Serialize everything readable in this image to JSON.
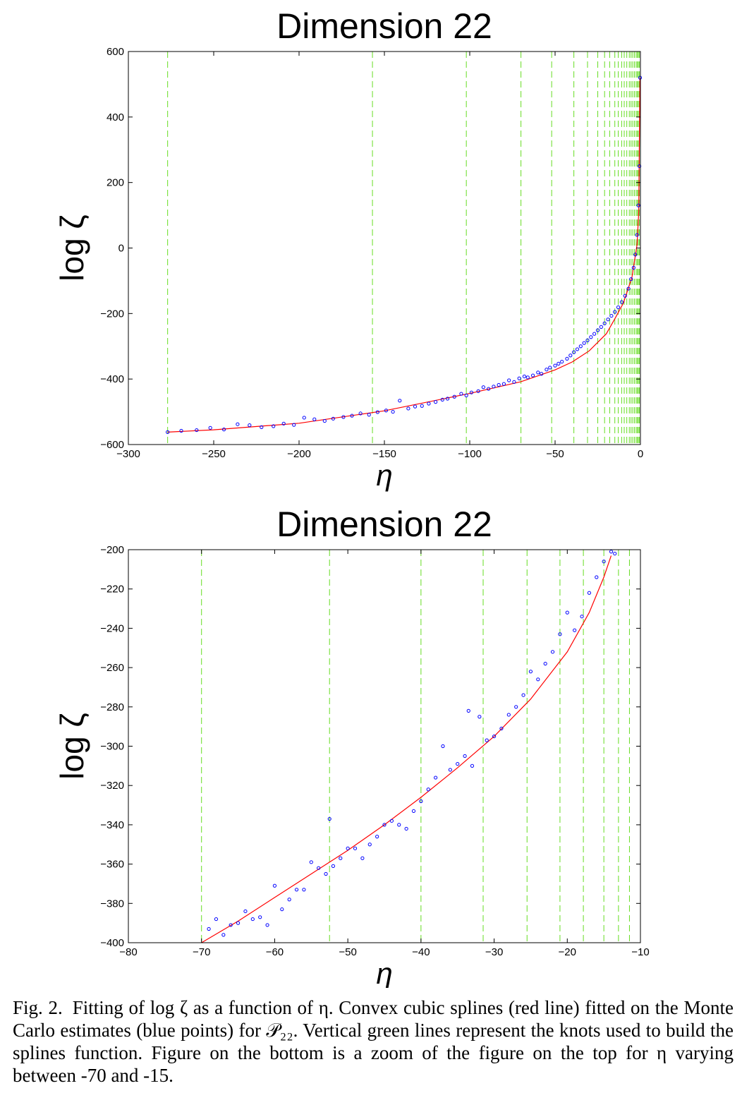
{
  "caption": {
    "label": "Fig. 2.",
    "text": "Fitting of log ζ as a function of η. Convex cubic splines (red line) fitted on the Monte Carlo estimates (blue points) for 𝒫₂₂. Vertical green lines represent the knots used to build the splines function. Figure on the bottom is a zoom of the figure on the top for η varying between -70 and -15."
  },
  "colors": {
    "points": "#0000ff",
    "fit": "#ff0000",
    "knots": "#66dd22",
    "axes": "#000000"
  },
  "chart_data": [
    {
      "type": "scatter",
      "title": "Dimension 22",
      "xlabel": "η",
      "ylabel": "log ζ",
      "xlim": [
        -300,
        0
      ],
      "ylim": [
        -600,
        600
      ],
      "xticks": [
        "−300",
        "−250",
        "−200",
        "−150",
        "−100",
        "−50",
        "0"
      ],
      "yticks": [
        "−600",
        "−400",
        "−200",
        "0",
        "200",
        "400",
        "600"
      ],
      "grid": false,
      "series": [
        {
          "kind": "points",
          "marker": "circle",
          "x": [
            -277,
            -269,
            -260,
            -252,
            -244,
            -236,
            -229,
            -222,
            -215,
            -209,
            -203,
            -197,
            -191,
            -185,
            -180,
            -174,
            -169,
            -164,
            -159,
            -154,
            -149,
            -145,
            -141,
            -136,
            -132,
            -128,
            -124,
            -120,
            -116,
            -113,
            -109,
            -105,
            -102,
            -99,
            -95,
            -92,
            -89,
            -86,
            -83,
            -80,
            -77,
            -74,
            -71,
            -68,
            -66,
            -63,
            -60,
            -58,
            -55,
            -53,
            -50,
            -48,
            -46,
            -43,
            -41,
            -39,
            -37,
            -35,
            -33,
            -31,
            -29,
            -27,
            -25,
            -23,
            -21,
            -19,
            -17,
            -15,
            -13,
            -11,
            -9,
            -7,
            -5.5,
            -4,
            -3,
            -2,
            -1.2,
            -0.6,
            -0.2
          ],
          "y": [
            -562,
            -558,
            -556,
            -549,
            -554,
            -538,
            -541,
            -547,
            -544,
            -536,
            -540,
            -518,
            -523,
            -528,
            -521,
            -516,
            -512,
            -505,
            -509,
            -501,
            -496,
            -500,
            -466,
            -490,
            -484,
            -482,
            -475,
            -470,
            -463,
            -460,
            -454,
            -445,
            -450,
            -441,
            -437,
            -425,
            -430,
            -423,
            -418,
            -415,
            -404,
            -409,
            -398,
            -392,
            -395,
            -389,
            -380,
            -384,
            -371,
            -365,
            -359,
            -353,
            -347,
            -338,
            -328,
            -318,
            -309,
            -300,
            -290,
            -282,
            -272,
            -262,
            -251,
            -241,
            -230,
            -218,
            -207,
            -195,
            -181,
            -165,
            -146,
            -124,
            -95,
            -60,
            -20,
            40,
            130,
            250,
            520
          ]
        }
      ],
      "fit": {
        "x": [
          -277,
          -250,
          -200,
          -150,
          -100,
          -70,
          -50,
          -40,
          -30,
          -20,
          -15,
          -10,
          -5,
          -2,
          -1,
          -0.3
        ],
        "y": [
          -562,
          -555,
          -535,
          -497,
          -444,
          -408,
          -372,
          -348,
          -314,
          -262,
          -216,
          -168,
          -90,
          10,
          110,
          520
        ]
      },
      "knots": [
        -277,
        -157,
        -102,
        -70,
        -52,
        -39,
        -31,
        -25,
        -21,
        -18,
        -15,
        -13,
        -11,
        -9.5,
        -8,
        -6.5,
        -5.5,
        -4.5,
        -3.5,
        -2.5,
        -1.8,
        -1.2,
        -0.6
      ]
    },
    {
      "type": "scatter",
      "title": "Dimension 22",
      "xlabel": "η",
      "ylabel": "log ζ",
      "xlim": [
        -80,
        -10
      ],
      "ylim": [
        -400,
        -200
      ],
      "xticks": [
        "−80",
        "−70",
        "−60",
        "−50",
        "−40",
        "−30",
        "−20",
        "−10"
      ],
      "yticks": [
        "−400",
        "−380",
        "−360",
        "−340",
        "−320",
        "−300",
        "−280",
        "−260",
        "−240",
        "−220",
        "−200"
      ],
      "grid": false,
      "series": [
        {
          "kind": "points",
          "marker": "circle",
          "x": [
            -69,
            -68,
            -67,
            -66,
            -65,
            -64,
            -63,
            -62,
            -61,
            -60,
            -59,
            -58,
            -57,
            -56,
            -55,
            -54,
            -53,
            -52.5,
            -52,
            -51,
            -50,
            -49,
            -48,
            -47,
            -46,
            -45,
            -44,
            -43,
            -42,
            -41,
            -40,
            -39,
            -38,
            -37,
            -36,
            -35,
            -34,
            -33.5,
            -33,
            -32,
            -31,
            -30,
            -29,
            -28,
            -27,
            -26,
            -25,
            -24,
            -23,
            -22,
            -21,
            -20,
            -19,
            -18,
            -17,
            -16,
            -15,
            -14,
            -13.5
          ],
          "y": [
            -393,
            -388,
            -396,
            -391,
            -390,
            -384,
            -388,
            -387,
            -391,
            -371,
            -383,
            -378,
            -373,
            -373,
            -359,
            -362,
            -365,
            -337,
            -361,
            -357,
            -352,
            -352,
            -357,
            -350,
            -346,
            -340,
            -338,
            -340,
            -342,
            -333,
            -328,
            -322,
            -316,
            -300,
            -312,
            -309,
            -305,
            -282,
            -310,
            -285,
            -297,
            -295,
            -291,
            -284,
            -280,
            -274,
            -262,
            -266,
            -258,
            -252,
            -243,
            -232,
            -241,
            -234,
            -222,
            -214,
            -206,
            -201,
            -202
          ]
        }
      ],
      "fit": {
        "x": [
          -70,
          -65,
          -60,
          -55,
          -50,
          -45,
          -40,
          -35,
          -30,
          -25,
          -20,
          -17,
          -15,
          -14
        ],
        "y": [
          -400,
          -389,
          -377,
          -365,
          -353,
          -340,
          -326,
          -311,
          -295,
          -276,
          -252,
          -232,
          -214,
          -203
        ]
      },
      "knots": [
        -70,
        -52.5,
        -40,
        -31.5,
        -25.5,
        -21,
        -17.8,
        -15,
        -13,
        -11.5,
        -10
      ]
    }
  ]
}
